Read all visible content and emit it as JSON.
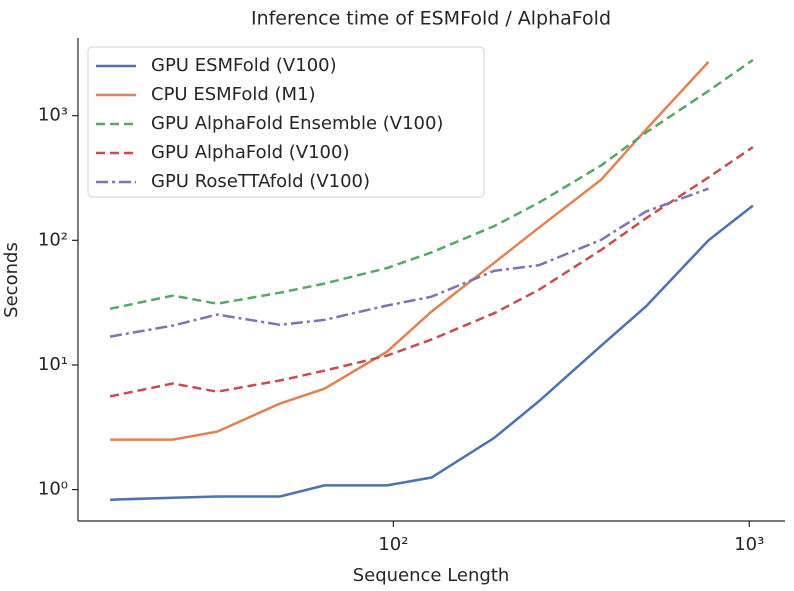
{
  "chart_data": {
    "type": "line",
    "title": "Inference time of ESMFold / AlphaFold",
    "x_label": "Sequence Length",
    "y_label": "Seconds",
    "x_scale": "log",
    "y_scale": "log",
    "legend": "upper left",
    "x": [
      16,
      24,
      32,
      48,
      64,
      96,
      128,
      192,
      256,
      384,
      512,
      768,
      1024
    ],
    "series": [
      {
        "name": "GPU ESMFold (V100)",
        "color": "#4c72b0",
        "style": "solid",
        "values": [
          0.83,
          0.86,
          0.88,
          0.88,
          1.08,
          1.08,
          1.25,
          2.6,
          5.1,
          14.3,
          29.4,
          100,
          190
        ]
      },
      {
        "name": "CPU ESMFold (M1)",
        "color": "#dd8452",
        "style": "solid",
        "values": [
          2.52,
          2.52,
          2.92,
          4.9,
          6.45,
          12.8,
          26.8,
          66,
          126,
          307,
          770,
          2700,
          null
        ]
      },
      {
        "name": "GPU AlphaFold Ensemble (V100)",
        "color": "#55a868",
        "style": "dashed",
        "values": [
          28.2,
          36,
          31,
          38,
          45,
          60,
          80,
          130,
          200,
          400,
          730,
          1580,
          2800
        ]
      },
      {
        "name": "GPU AlphaFold (V100)",
        "color": "#c44e52",
        "style": "dashed",
        "values": [
          5.6,
          7.1,
          6.1,
          7.5,
          9,
          11.9,
          16,
          26,
          40,
          84,
          150,
          320,
          560
        ]
      },
      {
        "name": "GPU RoseTTAfold (V100)",
        "color": "#8172b3",
        "style": "dashdot",
        "values": [
          16.9,
          20.7,
          25.4,
          21,
          23,
          30,
          35.3,
          57,
          63,
          101,
          170,
          260,
          null
        ]
      }
    ],
    "xlim": [
      13,
      1260
    ],
    "ylim": [
      0.56,
      4200
    ],
    "xticks": [
      {
        "value": 100,
        "label": "10²"
      },
      {
        "value": 1000,
        "label": "10³"
      }
    ],
    "yticks": [
      {
        "value": 1,
        "label": "10⁰"
      },
      {
        "value": 10,
        "label": "10¹"
      },
      {
        "value": 100,
        "label": "10²"
      },
      {
        "value": 1000,
        "label": "10³"
      }
    ]
  }
}
